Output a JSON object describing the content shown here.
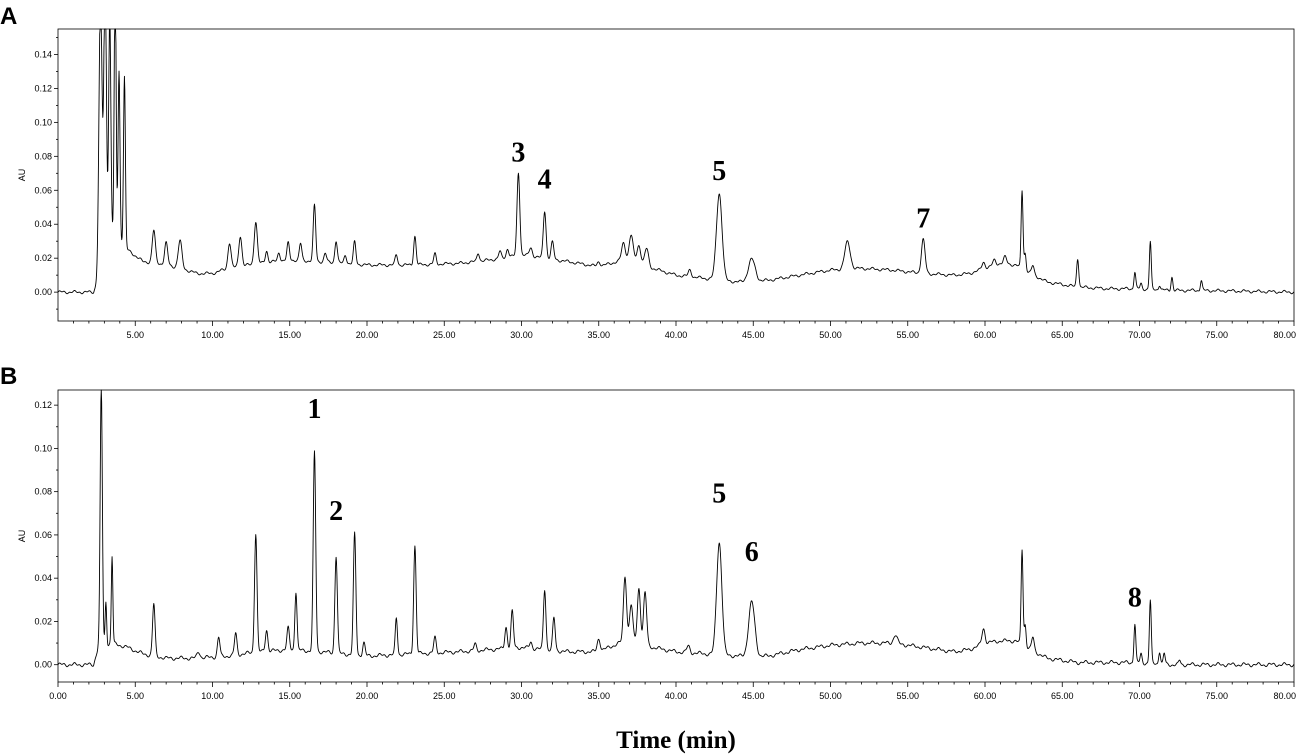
{
  "figure": {
    "xtitle": "Time (min)"
  },
  "chart_data": [
    {
      "type": "line",
      "panel": "A",
      "ylabel": "AU",
      "xlim": [
        0,
        80
      ],
      "ylim": [
        -0.017,
        0.155
      ],
      "yticks": [
        0.0,
        0.02,
        0.04,
        0.06,
        0.08,
        0.1,
        0.12,
        0.14
      ],
      "ytick_labels": [
        "0.00",
        "0.02",
        "0.04",
        "0.06",
        "0.08",
        "0.10",
        "0.12",
        "0.14"
      ],
      "xticks": [
        5,
        10,
        15,
        20,
        25,
        30,
        35,
        40,
        45,
        50,
        55,
        60,
        65,
        70,
        75,
        80
      ],
      "xtick_labels": [
        "5.00",
        "10.00",
        "15.00",
        "20.00",
        "25.00",
        "30.00",
        "35.00",
        "40.00",
        "45.00",
        "50.00",
        "55.00",
        "60.00",
        "65.00",
        "70.00",
        "75.00",
        "80.00"
      ],
      "baseline": [
        [
          0,
          0.0
        ],
        [
          2.3,
          0.0
        ],
        [
          2.7,
          0.01
        ],
        [
          3.0,
          0.03
        ],
        [
          3.6,
          0.034
        ],
        [
          4.5,
          0.025
        ],
        [
          5.5,
          0.018
        ],
        [
          6.5,
          0.017
        ],
        [
          8,
          0.014
        ],
        [
          9,
          0.011
        ],
        [
          10,
          0.011
        ],
        [
          11,
          0.014
        ],
        [
          13,
          0.017
        ],
        [
          15,
          0.019
        ],
        [
          17,
          0.018
        ],
        [
          20,
          0.016
        ],
        [
          23,
          0.016
        ],
        [
          26,
          0.017
        ],
        [
          28,
          0.019
        ],
        [
          30,
          0.022
        ],
        [
          33,
          0.018
        ],
        [
          35,
          0.015
        ],
        [
          37,
          0.02
        ],
        [
          38.5,
          0.014
        ],
        [
          40,
          0.01
        ],
        [
          42,
          0.008
        ],
        [
          44,
          0.006
        ],
        [
          46,
          0.007
        ],
        [
          48,
          0.01
        ],
        [
          50,
          0.013
        ],
        [
          52,
          0.014
        ],
        [
          54,
          0.013
        ],
        [
          56,
          0.011
        ],
        [
          58,
          0.01
        ],
        [
          59,
          0.011
        ],
        [
          60,
          0.014
        ],
        [
          61,
          0.017
        ],
        [
          62,
          0.016
        ],
        [
          63,
          0.011
        ],
        [
          64,
          0.006
        ],
        [
          66,
          0.003
        ],
        [
          68,
          0.002
        ],
        [
          70,
          0.002
        ],
        [
          72,
          0.001
        ],
        [
          74,
          0.001
        ],
        [
          80,
          0.0
        ]
      ],
      "peaks": [
        [
          2.75,
          0.16,
          0.1
        ],
        [
          3.05,
          0.16,
          0.08
        ],
        [
          3.35,
          0.13,
          0.07
        ],
        [
          3.7,
          0.16,
          0.06
        ],
        [
          3.95,
          0.1,
          0.06
        ],
        [
          4.3,
          0.1,
          0.06
        ],
        [
          6.2,
          0.019,
          0.1
        ],
        [
          7.0,
          0.013,
          0.1
        ],
        [
          7.9,
          0.016,
          0.12
        ],
        [
          11.1,
          0.015,
          0.1
        ],
        [
          11.8,
          0.018,
          0.1
        ],
        [
          12.8,
          0.025,
          0.1
        ],
        [
          13.5,
          0.007,
          0.08
        ],
        [
          14.3,
          0.005,
          0.08
        ],
        [
          14.9,
          0.01,
          0.08
        ],
        [
          15.7,
          0.01,
          0.08
        ],
        [
          16.6,
          0.033,
          0.08
        ],
        [
          17.3,
          0.005,
          0.08
        ],
        [
          18.0,
          0.013,
          0.08
        ],
        [
          18.6,
          0.005,
          0.08
        ],
        [
          19.2,
          0.013,
          0.08
        ],
        [
          21.9,
          0.006,
          0.08
        ],
        [
          23.1,
          0.017,
          0.08
        ],
        [
          24.4,
          0.006,
          0.08
        ],
        [
          27.2,
          0.005,
          0.08
        ],
        [
          28.6,
          0.004,
          0.08
        ],
        [
          29.1,
          0.005,
          0.08
        ],
        [
          29.8,
          0.049,
          0.09
        ],
        [
          30.6,
          0.005,
          0.1
        ],
        [
          31.5,
          0.028,
          0.09
        ],
        [
          32.0,
          0.01,
          0.09
        ],
        [
          35.0,
          0.003,
          0.1
        ],
        [
          36.6,
          0.01,
          0.12
        ],
        [
          37.1,
          0.014,
          0.12
        ],
        [
          37.6,
          0.01,
          0.12
        ],
        [
          38.1,
          0.01,
          0.12
        ],
        [
          40.9,
          0.004,
          0.1
        ],
        [
          42.8,
          0.051,
          0.18
        ],
        [
          44.9,
          0.013,
          0.22
        ],
        [
          51.1,
          0.016,
          0.18
        ],
        [
          56.0,
          0.02,
          0.12
        ],
        [
          59.9,
          0.004,
          0.1
        ],
        [
          60.6,
          0.003,
          0.1
        ],
        [
          61.3,
          0.004,
          0.1
        ],
        [
          62.4,
          0.046,
          0.06
        ],
        [
          62.6,
          0.01,
          0.06
        ],
        [
          63.1,
          0.005,
          0.08
        ],
        [
          66.0,
          0.017,
          0.07
        ],
        [
          69.7,
          0.01,
          0.06
        ],
        [
          70.1,
          0.003,
          0.06
        ],
        [
          70.7,
          0.028,
          0.06
        ],
        [
          71.3,
          0.003,
          0.06
        ],
        [
          72.1,
          0.008,
          0.06
        ],
        [
          74.0,
          0.006,
          0.06
        ]
      ],
      "annotations": [
        {
          "label": "3",
          "x": 29.8,
          "y": 0.077
        },
        {
          "label": "4",
          "x": 31.5,
          "y": 0.061
        },
        {
          "label": "5",
          "x": 42.8,
          "y": 0.066
        },
        {
          "label": "7",
          "x": 56.0,
          "y": 0.038
        }
      ]
    },
    {
      "type": "line",
      "panel": "B",
      "ylabel": "AU",
      "xlim": [
        0,
        80
      ],
      "ylim": [
        -0.008,
        0.127
      ],
      "yticks": [
        0.0,
        0.02,
        0.04,
        0.06,
        0.08,
        0.1,
        0.12
      ],
      "ytick_labels": [
        "0.00",
        "0.02",
        "0.04",
        "0.06",
        "0.08",
        "0.10",
        "0.12"
      ],
      "xticks": [
        0,
        5,
        10,
        15,
        20,
        25,
        30,
        35,
        40,
        45,
        50,
        55,
        60,
        65,
        70,
        75,
        80
      ],
      "xtick_labels": [
        "0.00",
        "5.00",
        "10.00",
        "15.00",
        "20.00",
        "25.00",
        "30.00",
        "35.00",
        "40.00",
        "45.00",
        "50.00",
        "55.00",
        "60.00",
        "65.00",
        "70.00",
        "75.00",
        "80.00"
      ],
      "baseline": [
        [
          0,
          0.0
        ],
        [
          2.3,
          0.0
        ],
        [
          2.6,
          0.008
        ],
        [
          3.5,
          0.01
        ],
        [
          4.5,
          0.008
        ],
        [
          5.5,
          0.005
        ],
        [
          7,
          0.003
        ],
        [
          9,
          0.003
        ],
        [
          11,
          0.004
        ],
        [
          13,
          0.006
        ],
        [
          15,
          0.007
        ],
        [
          17,
          0.006
        ],
        [
          20,
          0.004
        ],
        [
          23,
          0.005
        ],
        [
          26,
          0.006
        ],
        [
          28,
          0.007
        ],
        [
          30,
          0.008
        ],
        [
          33,
          0.006
        ],
        [
          35,
          0.006
        ],
        [
          37,
          0.012
        ],
        [
          38.5,
          0.008
        ],
        [
          40,
          0.006
        ],
        [
          42,
          0.005
        ],
        [
          44,
          0.004
        ],
        [
          46,
          0.004
        ],
        [
          48,
          0.007
        ],
        [
          50,
          0.009
        ],
        [
          52,
          0.01
        ],
        [
          54,
          0.01
        ],
        [
          56,
          0.008
        ],
        [
          58,
          0.006
        ],
        [
          59,
          0.007
        ],
        [
          60,
          0.01
        ],
        [
          61,
          0.011
        ],
        [
          62,
          0.011
        ],
        [
          63,
          0.007
        ],
        [
          64,
          0.003
        ],
        [
          66,
          0.001
        ],
        [
          68,
          0.001
        ],
        [
          70,
          0.001
        ],
        [
          72,
          0.0
        ],
        [
          80,
          0.0
        ]
      ],
      "peaks": [
        [
          2.8,
          0.12,
          0.07
        ],
        [
          3.1,
          0.02,
          0.05
        ],
        [
          3.5,
          0.04,
          0.05
        ],
        [
          6.2,
          0.024,
          0.08
        ],
        [
          9.1,
          0.003,
          0.1
        ],
        [
          10.4,
          0.009,
          0.08
        ],
        [
          11.5,
          0.01,
          0.08
        ],
        [
          12.8,
          0.055,
          0.08
        ],
        [
          13.5,
          0.01,
          0.08
        ],
        [
          14.9,
          0.01,
          0.08
        ],
        [
          15.4,
          0.027,
          0.07
        ],
        [
          16.6,
          0.092,
          0.08
        ],
        [
          18.0,
          0.045,
          0.08
        ],
        [
          19.2,
          0.056,
          0.08
        ],
        [
          19.8,
          0.006,
          0.08
        ],
        [
          21.9,
          0.017,
          0.07
        ],
        [
          23.1,
          0.05,
          0.08
        ],
        [
          24.4,
          0.007,
          0.08
        ],
        [
          27.0,
          0.003,
          0.08
        ],
        [
          29.0,
          0.01,
          0.08
        ],
        [
          29.4,
          0.017,
          0.08
        ],
        [
          30.6,
          0.003,
          0.08
        ],
        [
          31.5,
          0.028,
          0.08
        ],
        [
          32.1,
          0.015,
          0.08
        ],
        [
          35.0,
          0.006,
          0.1
        ],
        [
          36.7,
          0.03,
          0.1
        ],
        [
          37.1,
          0.016,
          0.1
        ],
        [
          37.6,
          0.025,
          0.1
        ],
        [
          38.0,
          0.024,
          0.1
        ],
        [
          40.8,
          0.003,
          0.1
        ],
        [
          42.8,
          0.052,
          0.17
        ],
        [
          44.9,
          0.025,
          0.2
        ],
        [
          54.2,
          0.004,
          0.12
        ],
        [
          59.9,
          0.007,
          0.1
        ],
        [
          62.4,
          0.044,
          0.06
        ],
        [
          62.6,
          0.01,
          0.06
        ],
        [
          63.1,
          0.006,
          0.08
        ],
        [
          69.7,
          0.018,
          0.06
        ],
        [
          70.1,
          0.004,
          0.06
        ],
        [
          70.7,
          0.029,
          0.06
        ],
        [
          71.3,
          0.006,
          0.06
        ],
        [
          71.6,
          0.005,
          0.06
        ],
        [
          72.6,
          0.002,
          0.06
        ]
      ],
      "annotations": [
        {
          "label": "1",
          "x": 16.6,
          "y": 0.114
        },
        {
          "label": "2",
          "x": 18.0,
          "y": 0.067
        },
        {
          "label": "5",
          "x": 42.8,
          "y": 0.075
        },
        {
          "label": "6",
          "x": 44.9,
          "y": 0.048
        },
        {
          "label": "8",
          "x": 69.7,
          "y": 0.027
        }
      ]
    }
  ]
}
